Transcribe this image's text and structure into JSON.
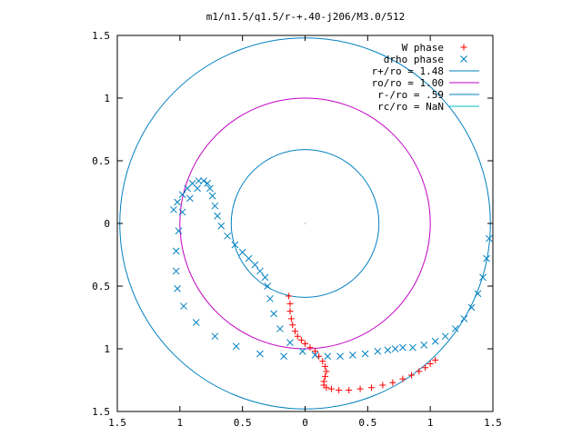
{
  "chart_data": {
    "type": "scatter",
    "title": "m1/n1.5/q1.5/r-+.40-j206/M3.0/512",
    "xlabel": "",
    "ylabel": "",
    "xlim": [
      -1.5,
      1.5
    ],
    "ylim": [
      -1.5,
      1.5
    ],
    "x_ticks": [
      -1.5,
      -1,
      -0.5,
      0,
      0.5,
      1,
      1.5
    ],
    "x_tick_labels": [
      "1.5",
      "1",
      "0.5",
      "0",
      "0.5",
      "1",
      "1.5"
    ],
    "y_ticks": [
      1.5,
      1,
      0.5,
      0,
      -0.5,
      -1,
      -1.5
    ],
    "y_tick_labels": [
      "1.5",
      "1",
      "0.5",
      "0",
      "0.5",
      "1",
      "1.5"
    ],
    "grid": false,
    "legend_position": "top-right",
    "circles": [
      {
        "name": "r+/ro = 1.48",
        "radius": 1.48,
        "color": "#0080c0"
      },
      {
        "name": "ro/ro = 1.00",
        "radius": 1.0,
        "color": "#c000c0"
      },
      {
        "name": "r-/ro = .59",
        "radius": 0.59,
        "color": "#0080c0"
      },
      {
        "name": "rc/ro = NaN",
        "radius": null,
        "color": "#00c0c0"
      }
    ],
    "series": [
      {
        "name": "W phase",
        "marker": "+",
        "color": "#ff0000",
        "x": [
          -0.13,
          -0.12,
          -0.12,
          -0.11,
          -0.1,
          -0.08,
          -0.06,
          -0.03,
          0.0,
          0.04,
          0.08,
          0.11,
          0.14,
          0.16,
          0.17,
          0.16,
          0.15,
          0.15,
          0.17,
          0.21,
          0.27,
          0.35,
          0.44,
          0.53,
          0.62,
          0.7,
          0.78,
          0.85,
          0.91,
          0.96,
          1.0,
          1.04
        ],
        "y": [
          -0.58,
          -0.64,
          -0.7,
          -0.76,
          -0.81,
          -0.86,
          -0.9,
          -0.93,
          -0.96,
          -0.99,
          -1.02,
          -1.06,
          -1.1,
          -1.14,
          -1.18,
          -1.22,
          -1.26,
          -1.29,
          -1.31,
          -1.32,
          -1.33,
          -1.33,
          -1.32,
          -1.31,
          -1.29,
          -1.27,
          -1.24,
          -1.21,
          -1.18,
          -1.15,
          -1.12,
          -1.09
        ]
      },
      {
        "name": "drho phase",
        "marker": "x",
        "color": "#0080c0",
        "x": [
          -1.05,
          -1.02,
          -0.98,
          -0.94,
          -0.9,
          -0.85,
          -0.81,
          -0.78,
          -0.76,
          -0.74,
          -0.72,
          -0.7,
          -0.67,
          -0.62,
          -0.56,
          -0.5,
          -0.45,
          -0.4,
          -0.36,
          -0.32,
          -0.3,
          -0.28,
          -0.25,
          -0.2,
          -0.12,
          -0.02,
          0.08,
          0.18,
          0.28,
          0.38,
          0.48,
          0.58,
          0.66,
          0.72,
          0.78,
          0.86,
          0.95,
          1.04,
          1.12,
          1.2,
          1.27,
          1.33,
          1.38,
          1.42,
          1.45,
          1.47,
          -0.86,
          -0.92,
          -0.98,
          -1.01,
          -1.03,
          -1.03,
          -1.02,
          -0.97,
          -0.87,
          -0.72,
          -0.55,
          -0.36,
          -0.17
        ],
        "y": [
          0.11,
          0.17,
          0.23,
          0.28,
          0.32,
          0.34,
          0.34,
          0.32,
          0.28,
          0.22,
          0.14,
          0.06,
          -0.02,
          -0.1,
          -0.17,
          -0.23,
          -0.28,
          -0.33,
          -0.38,
          -0.43,
          -0.5,
          -0.6,
          -0.72,
          -0.84,
          -0.95,
          -1.02,
          -1.05,
          -1.06,
          -1.06,
          -1.05,
          -1.04,
          -1.02,
          -1.01,
          -1.0,
          -0.99,
          -0.99,
          -0.97,
          -0.94,
          -0.9,
          -0.84,
          -0.76,
          -0.67,
          -0.56,
          -0.43,
          -0.28,
          -0.12,
          0.28,
          0.2,
          0.09,
          -0.06,
          -0.22,
          -0.38,
          -0.52,
          -0.66,
          -0.79,
          -0.9,
          -0.98,
          -1.04,
          -1.06
        ]
      }
    ]
  }
}
